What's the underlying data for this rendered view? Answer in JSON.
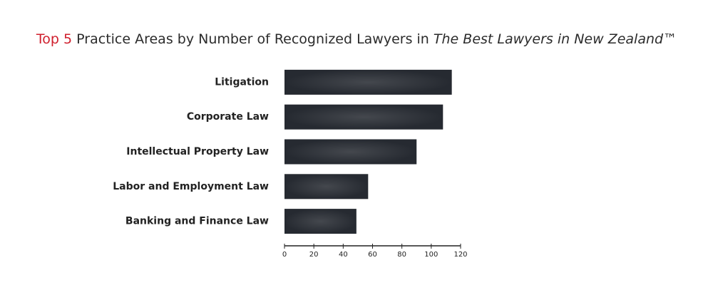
{
  "chart_data": {
    "type": "bar",
    "orientation": "horizontal",
    "title": {
      "highlight": "Top 5",
      "main": "Practice Areas by Number of Recognized Lawyers in",
      "italic": "The Best Lawyers in New Zealand",
      "mark": "™"
    },
    "categories": [
      "Litigation",
      "Corporate Law",
      "Intellectual Property Law",
      "Labor and Employment Law",
      "Banking and Finance Law"
    ],
    "values": [
      114,
      108,
      90,
      57,
      49
    ],
    "color": "#262a31",
    "highlight_color": "#d0202e",
    "xlim": [
      0,
      120
    ],
    "xticks": [
      0,
      20,
      40,
      60,
      80,
      100,
      120
    ],
    "grid": false
  }
}
